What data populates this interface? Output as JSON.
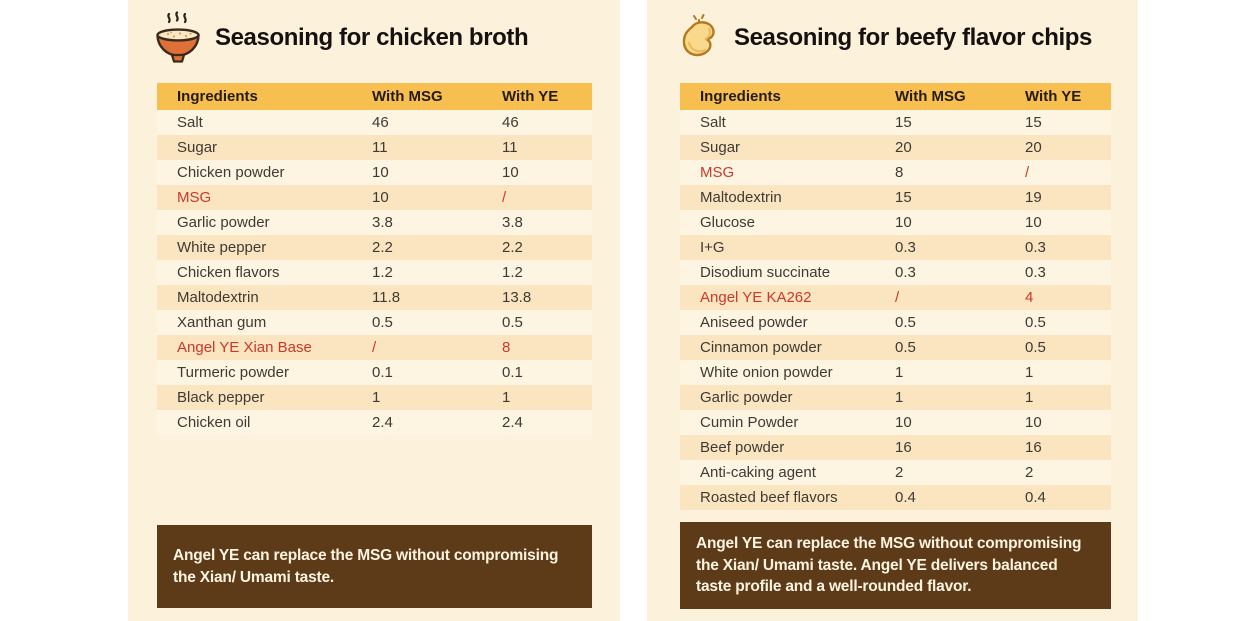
{
  "colors": {
    "panel_background": "#FCF1DB",
    "header_row_background": "#F7BF4F",
    "alt_row_background": "#FAE5C0",
    "highlight_red": "#C9392C",
    "note_background": "#5D3A18",
    "note_text": "#FCF4E1",
    "body_text": "#3E3A35"
  },
  "panels": [
    {
      "icon": "soup-bowl-icon",
      "title": "Seasoning for chicken broth",
      "columns": [
        "Ingredients",
        "With MSG",
        "With YE"
      ],
      "rows": [
        {
          "ingredient": "Salt",
          "msg": "46",
          "ye": "46"
        },
        {
          "ingredient": "Sugar",
          "msg": "11",
          "ye": "11"
        },
        {
          "ingredient": "Chicken powder",
          "msg": "10",
          "ye": "10"
        },
        {
          "ingredient": "MSG",
          "msg": "10",
          "ye": "/",
          "red_name": true,
          "red_ye": true
        },
        {
          "ingredient": "Garlic powder",
          "msg": "3.8",
          "ye": "3.8"
        },
        {
          "ingredient": "White pepper",
          "msg": "2.2",
          "ye": "2.2"
        },
        {
          "ingredient": "Chicken flavors",
          "msg": "1.2",
          "ye": "1.2"
        },
        {
          "ingredient": "Maltodextrin",
          "msg": "11.8",
          "ye": "13.8"
        },
        {
          "ingredient": "Xanthan gum",
          "msg": "0.5",
          "ye": "0.5"
        },
        {
          "ingredient": "Angel YE Xian Base",
          "msg": "/",
          "ye": "8",
          "red_name": true,
          "red_msg": true,
          "red_ye": true
        },
        {
          "ingredient": "Turmeric powder",
          "msg": "0.1",
          "ye": "0.1"
        },
        {
          "ingredient": "Black pepper",
          "msg": "1",
          "ye": "1"
        },
        {
          "ingredient": "Chicken oil",
          "msg": "2.4",
          "ye": "2.4"
        }
      ],
      "note": "Angel YE can replace the MSG without compromising the Xian/ Umami taste."
    },
    {
      "icon": "potato-chip-icon",
      "title": "Seasoning for beefy flavor chips",
      "columns": [
        "Ingredients",
        "With MSG",
        "With YE"
      ],
      "rows": [
        {
          "ingredient": "Salt",
          "msg": "15",
          "ye": "15"
        },
        {
          "ingredient": "Sugar",
          "msg": "20",
          "ye": "20"
        },
        {
          "ingredient": "MSG",
          "msg": "8",
          "ye": "/",
          "red_name": true,
          "red_ye": true
        },
        {
          "ingredient": "Maltodextrin",
          "msg": "15",
          "ye": "19"
        },
        {
          "ingredient": "Glucose",
          "msg": "10",
          "ye": "10"
        },
        {
          "ingredient": "I+G",
          "msg": "0.3",
          "ye": "0.3"
        },
        {
          "ingredient": "Disodium succinate",
          "msg": "0.3",
          "ye": "0.3"
        },
        {
          "ingredient": "Angel YE KA262",
          "msg": "/",
          "ye": "4",
          "red_name": true,
          "red_msg": true,
          "red_ye": true
        },
        {
          "ingredient": "Aniseed powder",
          "msg": "0.5",
          "ye": "0.5"
        },
        {
          "ingredient": "Cinnamon powder",
          "msg": "0.5",
          "ye": "0.5"
        },
        {
          "ingredient": "White onion powder",
          "msg": "1",
          "ye": "1"
        },
        {
          "ingredient": "Garlic powder",
          "msg": "1",
          "ye": "1"
        },
        {
          "ingredient": "Cumin Powder",
          "msg": "10",
          "ye": "10"
        },
        {
          "ingredient": "Beef powder",
          "msg": "16",
          "ye": "16"
        },
        {
          "ingredient": "Anti-caking agent",
          "msg": "2",
          "ye": "2"
        },
        {
          "ingredient": "Roasted beef flavors",
          "msg": "0.4",
          "ye": "0.4"
        }
      ],
      "note": "Angel YE can replace the MSG without compromising the Xian/ Umami taste. Angel YE delivers balanced taste profile and a well-rounded flavor."
    }
  ]
}
